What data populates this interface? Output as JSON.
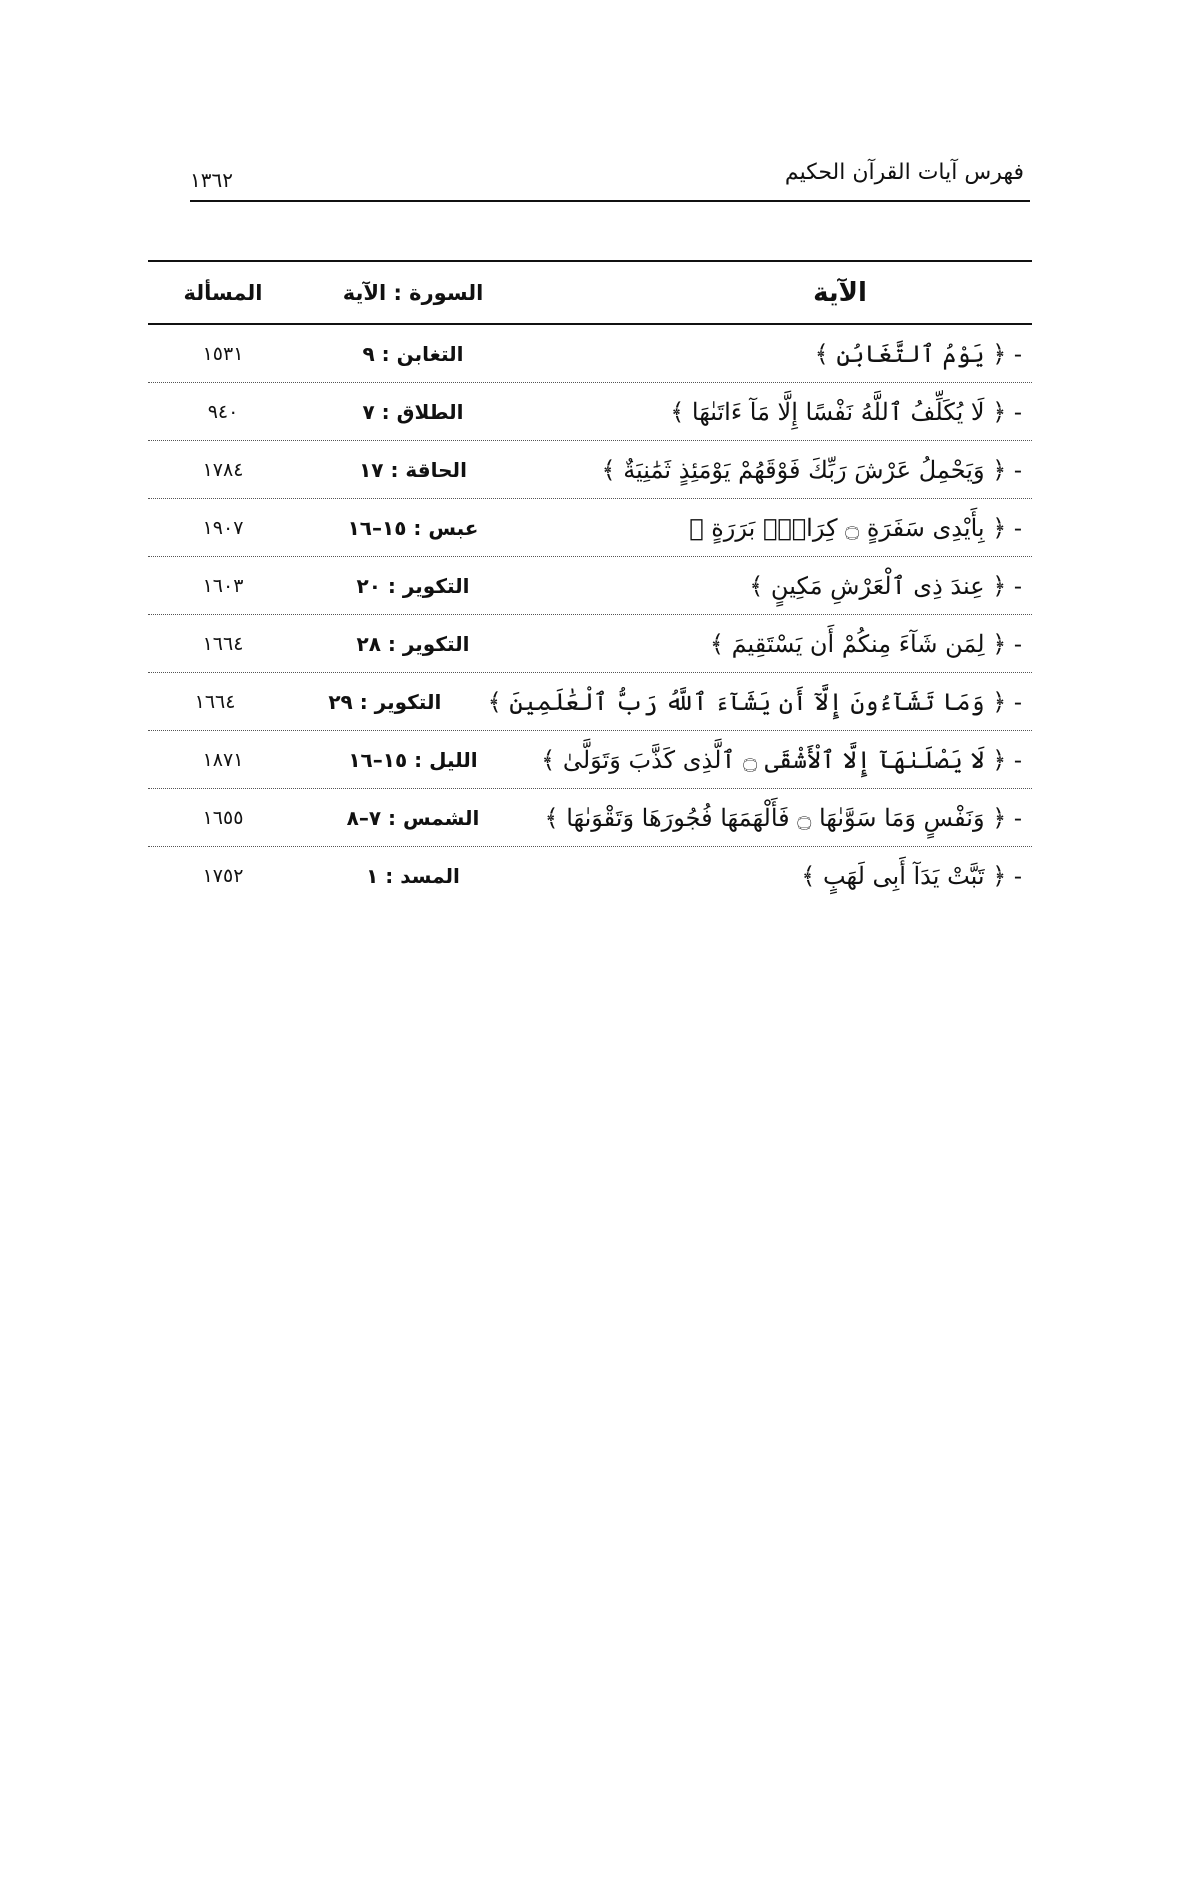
{
  "header": {
    "title": "فهرس آيات القرآن الحكيم",
    "page_number": "١٣٦٢"
  },
  "table": {
    "columns": [
      "الآية",
      "السورة : الآية",
      "المسألة"
    ],
    "rows": [
      {
        "ayah": "- ﴿ يَوْمُ ٱلتَّغَابُنِ ﴾",
        "sura": "التغابن : ٩",
        "num": "١٥٣١"
      },
      {
        "ayah": "- ﴿ لَا يُكَلِّفُ ٱللَّهُ نَفْسًا إِلَّا مَآ ءَاتَىٰهَا ﴾",
        "sura": "الطلاق : ٧",
        "num": "٩٤٠"
      },
      {
        "ayah": "- ﴿ وَيَحْمِلُ عَرْشَ رَبِّكَ فَوْقَهُمْ يَوْمَئِذٍ ثَمَٰنِيَةٌ ﴾",
        "sura": "الحاقة : ١٧",
        "num": "١٧٨٤"
      },
      {
        "ayah": "- ﴿ بِأَيْدِى سَفَرَةٍ ۝ كِرَامٍۭ بَرَرَةٍ ﴾",
        "sura": "عبس : ١٥–١٦",
        "num": "١٩٠٧"
      },
      {
        "ayah": "- ﴿ عِندَ ذِى ٱلْعَرْشِ مَكِينٍ ﴾",
        "sura": "التكوير : ٢٠",
        "num": "١٦٠٣"
      },
      {
        "ayah": "- ﴿ لِمَن شَآءَ مِنكُمْ أَن يَسْتَقِيمَ ﴾",
        "sura": "التكوير : ٢٨",
        "num": "١٦٦٤"
      },
      {
        "ayah": "- ﴿ وَمَا تَشَآءُونَ إِلَّآ أَن يَشَآءَ ٱللَّهُ رَبُّ ٱلْعَٰلَمِينَ ﴾",
        "sura": "التكوير : ٢٩",
        "num": "١٦٦٤"
      },
      {
        "ayah": "- ﴿ لَا يَصْلَىٰهَآ إِلَّا ٱلْأَشْقَى ۝ ٱلَّذِى كَذَّبَ وَتَوَلَّىٰ ﴾",
        "sura": "الليل : ١٥–١٦",
        "num": "١٨٧١"
      },
      {
        "ayah": "- ﴿ وَنَفْسٍ وَمَا سَوَّىٰهَا ۝ فَأَلْهَمَهَا فُجُورَهَا وَتَقْوَىٰهَا ﴾",
        "sura": "الشمس : ٧–٨",
        "num": "١٦٥٥"
      },
      {
        "ayah": "- ﴿ تَبَّتْ يَدَآ أَبِى لَهَبٍ ﴾",
        "sura": "المسد : ١",
        "num": "١٧٥٢"
      }
    ]
  }
}
